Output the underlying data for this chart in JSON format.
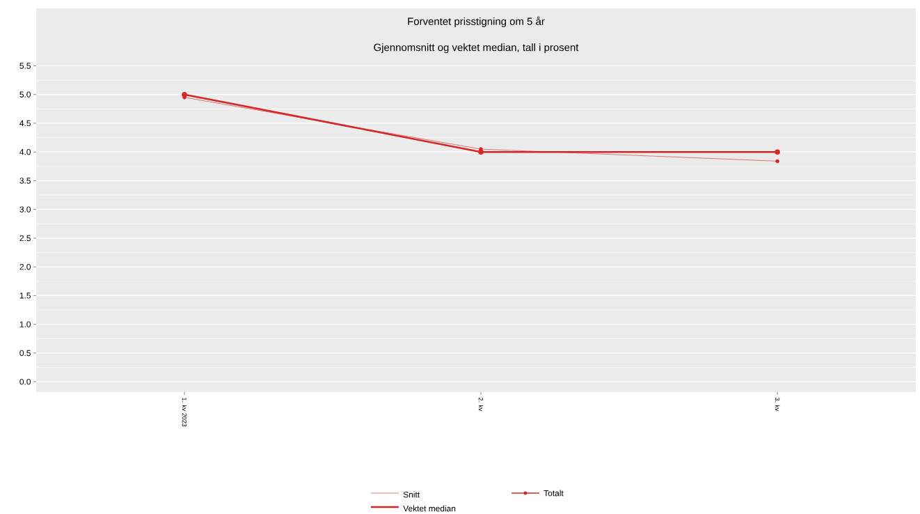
{
  "chart_data": {
    "type": "line",
    "title": "Forventet prisstigning om 5 år",
    "subtitle": "Gjennomsnitt og vektet median, tall i prosent",
    "categories": [
      "1. kv 2023",
      "2. kv",
      "3. kv"
    ],
    "series": [
      {
        "name": "Snitt",
        "color": "#d62728",
        "values": [
          4.95,
          4.05,
          3.84
        ]
      },
      {
        "name": "Vektet median",
        "color": "#d62728",
        "values": [
          5.0,
          4.0,
          4.0
        ]
      }
    ],
    "ylim": [
      -0.18,
      6.5
    ],
    "yticks": [
      {
        "value": 0,
        "label": "0.0"
      },
      0.5,
      {
        "value": 1,
        "label": "1.0"
      },
      1.5,
      {
        "value": 2,
        "label": "2.0"
      },
      2.5,
      {
        "value": 3,
        "label": "3.0"
      },
      3.5,
      {
        "value": 4,
        "label": "4.0"
      },
      4.5,
      {
        "value": 5,
        "label": "5.0"
      },
      5.5
    ],
    "grid": "y",
    "legend": "bottom",
    "marker": "circle",
    "line_style": "solid",
    "annotations": [
      "Totalt"
    ]
  }
}
